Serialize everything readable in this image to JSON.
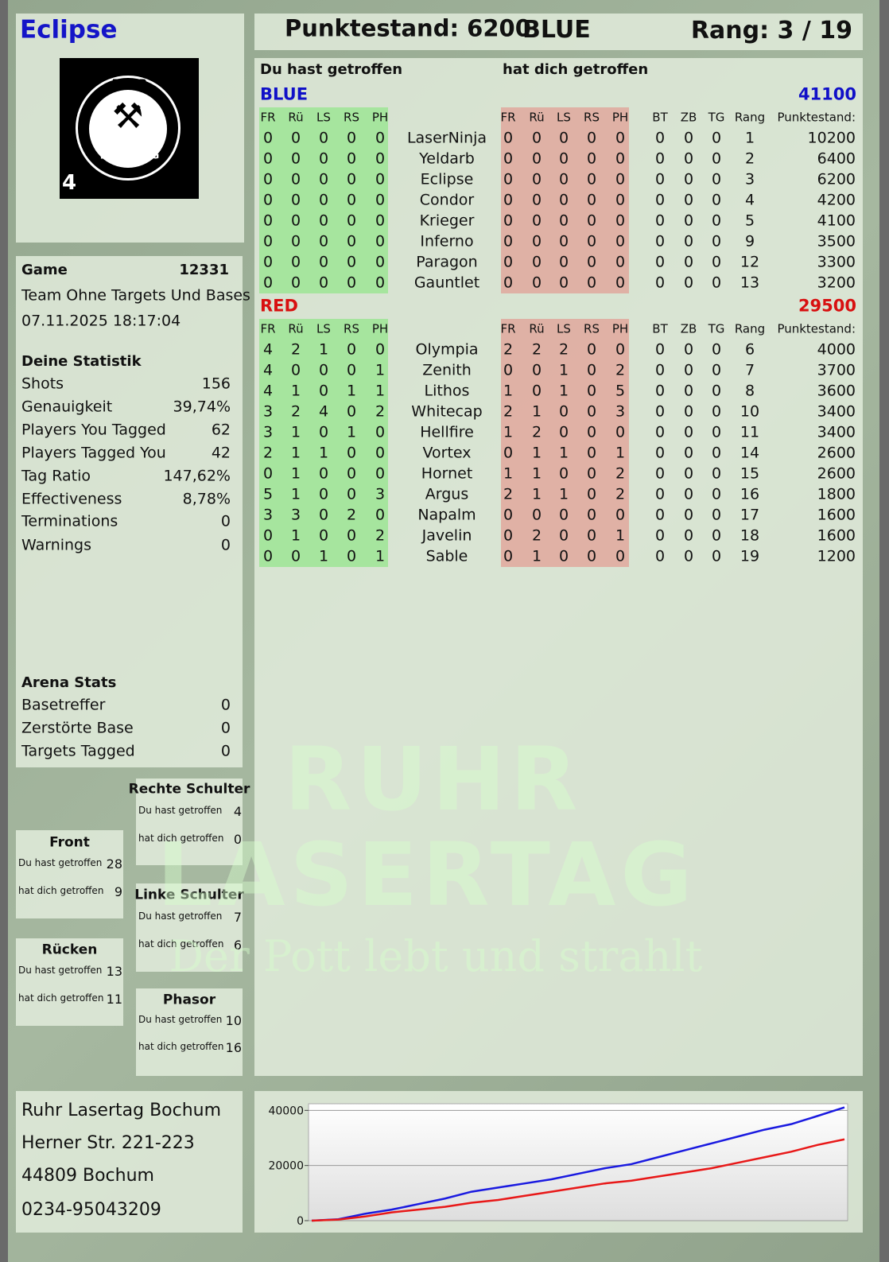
{
  "header": {
    "player": "Eclipse",
    "score": "Punktestand: 6200",
    "team": "BLUE",
    "rank": "Rang: 3 / 19"
  },
  "logo": {
    "top_text": "RUHR",
    "bottom_text": "LASERTAG",
    "number": "4"
  },
  "watermark": {
    "line1": "RUHR",
    "line2": "LASERTAG",
    "slogan": "Der Pott lebt und strahlt"
  },
  "game": {
    "label": "Game",
    "id": 12331,
    "mode": "Team Ohne Targets Und Bases",
    "datetime": "07.11.2025 18:17:04"
  },
  "stats": {
    "title": "Deine Statistik",
    "rows": [
      [
        "Shots",
        156
      ],
      [
        "Genauigkeit",
        "39,74%"
      ],
      [
        "Players You Tagged",
        62
      ],
      [
        "Players Tagged You",
        42
      ],
      [
        "Tag Ratio",
        "147,62%"
      ],
      [
        "Effectiveness",
        "8,78%"
      ],
      [
        "Terminations",
        0
      ],
      [
        "Warnings",
        0
      ]
    ]
  },
  "arena": {
    "title": "Arena Stats",
    "rows": [
      [
        "Basetreffer",
        0
      ],
      [
        "Zerstörte Base",
        0
      ],
      [
        "Targets Tagged",
        0
      ]
    ]
  },
  "zones": [
    {
      "title": "Rechte Schulter",
      "rows": [
        [
          "Du hast getroffen",
          4
        ],
        [
          "hat dich getroffen",
          0
        ]
      ]
    },
    {
      "title": "Front",
      "rows": [
        [
          "Du hast getroffen",
          28
        ],
        [
          "hat dich getroffen",
          9
        ]
      ]
    },
    {
      "title": "Linke Schulter",
      "rows": [
        [
          "Du hast getroffen",
          7
        ],
        [
          "hat dich getroffen",
          6
        ]
      ]
    },
    {
      "title": "Rücken",
      "rows": [
        [
          "Du hast getroffen",
          13
        ],
        [
          "hat dich getroffen",
          11
        ]
      ]
    },
    {
      "title": "Phasor",
      "rows": [
        [
          "Du hast getroffen",
          10
        ],
        [
          "hat dich getroffen",
          16
        ]
      ]
    }
  ],
  "address": [
    "Ruhr Lasertag Bochum",
    "Herner Str. 221-223",
    "44809 Bochum",
    "0234-95043209"
  ],
  "table": {
    "hit_label": "Du hast getroffen",
    "got_label": "hat dich getroffen",
    "teams": [
      {
        "name": "BLUE",
        "total": 41100,
        "color": "#1010c8",
        "columns_hit": [
          "FR",
          "Rü",
          "LS",
          "RS",
          "PH"
        ],
        "columns_got": [
          "FR",
          "Rü",
          "LS",
          "RS",
          "PH"
        ],
        "columns_extra": [
          "BT",
          "ZB",
          "TG",
          "Rang"
        ],
        "score_label": "Punktestand:",
        "rows": [
          {
            "name": "LaserNinja",
            "hit": [
              0,
              0,
              0,
              0,
              0
            ],
            "got": [
              0,
              0,
              0,
              0,
              0
            ],
            "extra": [
              0,
              0,
              0,
              1
            ],
            "score": 10200
          },
          {
            "name": "Yeldarb",
            "hit": [
              0,
              0,
              0,
              0,
              0
            ],
            "got": [
              0,
              0,
              0,
              0,
              0
            ],
            "extra": [
              0,
              0,
              0,
              2
            ],
            "score": 6400
          },
          {
            "name": "Eclipse",
            "hit": [
              0,
              0,
              0,
              0,
              0
            ],
            "got": [
              0,
              0,
              0,
              0,
              0
            ],
            "extra": [
              0,
              0,
              0,
              3
            ],
            "score": 6200
          },
          {
            "name": "Condor",
            "hit": [
              0,
              0,
              0,
              0,
              0
            ],
            "got": [
              0,
              0,
              0,
              0,
              0
            ],
            "extra": [
              0,
              0,
              0,
              4
            ],
            "score": 4200
          },
          {
            "name": "Krieger",
            "hit": [
              0,
              0,
              0,
              0,
              0
            ],
            "got": [
              0,
              0,
              0,
              0,
              0
            ],
            "extra": [
              0,
              0,
              0,
              5
            ],
            "score": 4100
          },
          {
            "name": "Inferno",
            "hit": [
              0,
              0,
              0,
              0,
              0
            ],
            "got": [
              0,
              0,
              0,
              0,
              0
            ],
            "extra": [
              0,
              0,
              0,
              9
            ],
            "score": 3500
          },
          {
            "name": "Paragon",
            "hit": [
              0,
              0,
              0,
              0,
              0
            ],
            "got": [
              0,
              0,
              0,
              0,
              0
            ],
            "extra": [
              0,
              0,
              0,
              12
            ],
            "score": 3300
          },
          {
            "name": "Gauntlet",
            "hit": [
              0,
              0,
              0,
              0,
              0
            ],
            "got": [
              0,
              0,
              0,
              0,
              0
            ],
            "extra": [
              0,
              0,
              0,
              13
            ],
            "score": 3200
          }
        ]
      },
      {
        "name": "RED",
        "total": 29500,
        "color": "#d81010",
        "columns_hit": [
          "FR",
          "Rü",
          "LS",
          "RS",
          "PH"
        ],
        "columns_got": [
          "FR",
          "Rü",
          "LS",
          "RS",
          "PH"
        ],
        "columns_extra": [
          "BT",
          "ZB",
          "TG",
          "Rang"
        ],
        "score_label": "Punktestand:",
        "rows": [
          {
            "name": "Olympia",
            "hit": [
              4,
              2,
              1,
              0,
              0
            ],
            "got": [
              2,
              2,
              2,
              0,
              0
            ],
            "extra": [
              0,
              0,
              0,
              6
            ],
            "score": 4000
          },
          {
            "name": "Zenith",
            "hit": [
              4,
              0,
              0,
              0,
              1
            ],
            "got": [
              0,
              0,
              1,
              0,
              2
            ],
            "extra": [
              0,
              0,
              0,
              7
            ],
            "score": 3700
          },
          {
            "name": "Lithos",
            "hit": [
              4,
              1,
              0,
              1,
              1
            ],
            "got": [
              1,
              0,
              1,
              0,
              5
            ],
            "extra": [
              0,
              0,
              0,
              8
            ],
            "score": 3600
          },
          {
            "name": "Whitecap",
            "hit": [
              3,
              2,
              4,
              0,
              2
            ],
            "got": [
              2,
              1,
              0,
              0,
              3
            ],
            "extra": [
              0,
              0,
              0,
              10
            ],
            "score": 3400
          },
          {
            "name": "Hellfire",
            "hit": [
              3,
              1,
              0,
              1,
              0
            ],
            "got": [
              1,
              2,
              0,
              0,
              0
            ],
            "extra": [
              0,
              0,
              0,
              11
            ],
            "score": 3400
          },
          {
            "name": "Vortex",
            "hit": [
              2,
              1,
              1,
              0,
              0
            ],
            "got": [
              0,
              1,
              1,
              0,
              1
            ],
            "extra": [
              0,
              0,
              0,
              14
            ],
            "score": 2600
          },
          {
            "name": "Hornet",
            "hit": [
              0,
              1,
              0,
              0,
              0
            ],
            "got": [
              1,
              1,
              0,
              0,
              2
            ],
            "extra": [
              0,
              0,
              0,
              15
            ],
            "score": 2600
          },
          {
            "name": "Argus",
            "hit": [
              5,
              1,
              0,
              0,
              3
            ],
            "got": [
              2,
              1,
              1,
              0,
              2
            ],
            "extra": [
              0,
              0,
              0,
              16
            ],
            "score": 1800
          },
          {
            "name": "Napalm",
            "hit": [
              3,
              3,
              0,
              2,
              0
            ],
            "got": [
              0,
              0,
              0,
              0,
              0
            ],
            "extra": [
              0,
              0,
              0,
              17
            ],
            "score": 1600
          },
          {
            "name": "Javelin",
            "hit": [
              0,
              1,
              0,
              0,
              2
            ],
            "got": [
              0,
              2,
              0,
              0,
              1
            ],
            "extra": [
              0,
              0,
              0,
              18
            ],
            "score": 1600
          },
          {
            "name": "Sable",
            "hit": [
              0,
              0,
              1,
              0,
              1
            ],
            "got": [
              0,
              1,
              0,
              0,
              0
            ],
            "extra": [
              0,
              0,
              0,
              19
            ],
            "score": 1200
          }
        ]
      }
    ]
  },
  "chart_data": {
    "type": "line",
    "categories": [
      null,
      null,
      null,
      null,
      null,
      null,
      null,
      null,
      null,
      null,
      null,
      null,
      null,
      null,
      null,
      null,
      null,
      null,
      null,
      null,
      null
    ],
    "series": [
      {
        "name": "BLUE",
        "color": "#1a1ae0",
        "values": [
          0,
          500,
          2500,
          4000,
          6000,
          8000,
          10500,
          12000,
          13500,
          15000,
          17000,
          19000,
          20500,
          23000,
          25500,
          28000,
          30500,
          33000,
          35000,
          38000,
          41100
        ]
      },
      {
        "name": "RED",
        "color": "#e81818",
        "values": [
          0,
          400,
          1500,
          3000,
          4000,
          5000,
          6500,
          7500,
          9000,
          10500,
          12000,
          13500,
          14500,
          16000,
          17500,
          19000,
          21000,
          23000,
          25000,
          27500,
          29500
        ]
      }
    ],
    "ylim": [
      0,
      42400
    ],
    "yticks": [
      0,
      20000,
      40000
    ],
    "grid": true
  }
}
